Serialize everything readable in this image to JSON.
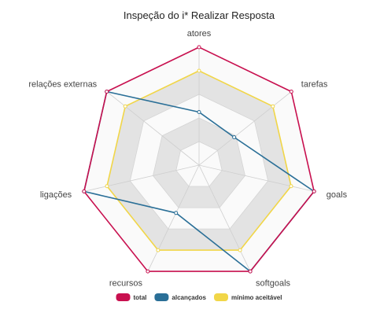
{
  "chart_data": {
    "type": "radar",
    "title": "Inspeção do i* Realizar Resposta",
    "categories": [
      "atores",
      "tarefas",
      "goals",
      "softgoals",
      "recursos",
      "ligações",
      "relações externas"
    ],
    "range": [
      0,
      1
    ],
    "bands": 5,
    "series": [
      {
        "name": "total",
        "color": "#c8104f",
        "values": [
          1,
          1,
          1,
          1,
          1,
          1,
          1
        ]
      },
      {
        "name": "alcançados",
        "color": "#2a6f97",
        "values": [
          0.45,
          0.38,
          1,
          1,
          0.45,
          1,
          1
        ]
      },
      {
        "name": "mínimo aceitável",
        "color": "#f1d648",
        "values": [
          0.8,
          0.8,
          0.8,
          0.8,
          0.8,
          0.8,
          0.8
        ]
      }
    ],
    "legend_position": "bottom"
  }
}
